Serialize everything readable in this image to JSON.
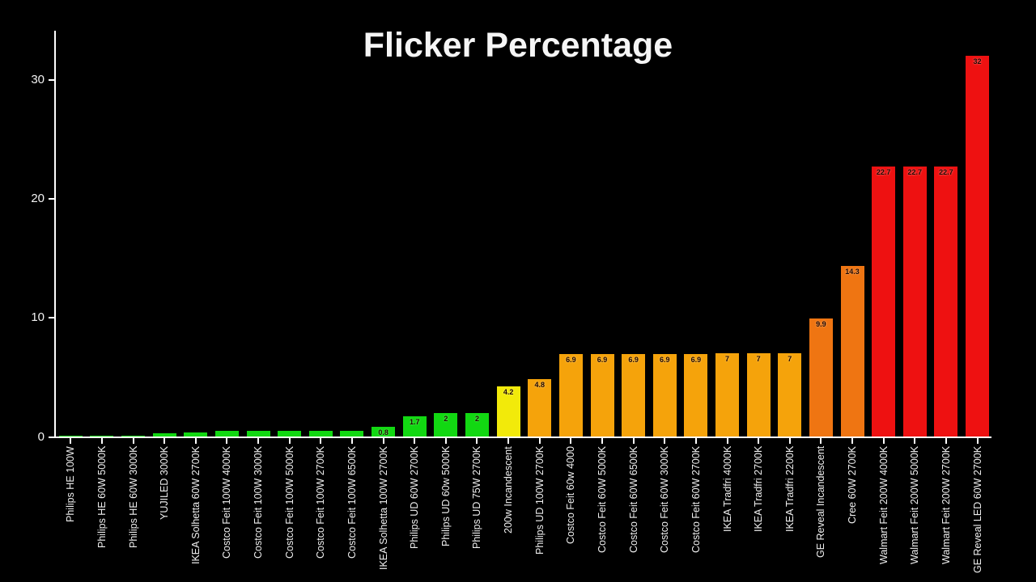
{
  "title": "Flicker Percentage",
  "colors": {
    "background": "#000000",
    "axis": "#ffffff",
    "tick_text": "#f2f2f2",
    "value_text": "#200800"
  },
  "chart_data": {
    "type": "bar",
    "title": "Flicker Percentage",
    "xlabel": "",
    "ylabel": "",
    "ylim": [
      0,
      34
    ],
    "yticks": [
      0,
      10,
      20,
      30
    ],
    "grid": false,
    "legend": "none",
    "palette": {
      "green": "#12d812",
      "yellow": "#f2ea0a",
      "orange": "#f5a30b",
      "dark_orange": "#ef7512",
      "red": "#ee1111"
    },
    "bars": [
      {
        "label": "Philips HE 100W",
        "value": 0.1,
        "display": "",
        "color": "green"
      },
      {
        "label": "Philips HE 60W 5000K",
        "value": 0.1,
        "display": "",
        "color": "green"
      },
      {
        "label": "Philips HE 60W 3000K",
        "value": 0.1,
        "display": "",
        "color": "green"
      },
      {
        "label": "YUJILED 3000K",
        "value": 0.25,
        "display": "",
        "color": "green"
      },
      {
        "label": "IKEA Solhetta 60W 2700K",
        "value": 0.35,
        "display": "",
        "color": "green"
      },
      {
        "label": "Costco Feit 100W 4000K",
        "value": 0.45,
        "display": "",
        "color": "green"
      },
      {
        "label": "Costco Feit 100W 3000K",
        "value": 0.45,
        "display": "",
        "color": "green"
      },
      {
        "label": "Costco Feit 100W 5000K",
        "value": 0.45,
        "display": "",
        "color": "green"
      },
      {
        "label": "Costco Feit 100W 2700K",
        "value": 0.45,
        "display": "",
        "color": "green"
      },
      {
        "label": "Costco Feit 100W 6500K",
        "value": 0.5,
        "display": "",
        "color": "green"
      },
      {
        "label": "IKEA Solhetta 100W 2700K",
        "value": 0.8,
        "display": "0.8",
        "color": "green"
      },
      {
        "label": "Philips UD 60W 2700K",
        "value": 1.7,
        "display": "1.7",
        "color": "green"
      },
      {
        "label": "Philips UD 60w 5000K",
        "value": 2,
        "display": "2",
        "color": "green"
      },
      {
        "label": "Philips UD 75W 2700K",
        "value": 2,
        "display": "2",
        "color": "green"
      },
      {
        "label": "200w Incandescent",
        "value": 4.2,
        "display": "4.2",
        "color": "yellow"
      },
      {
        "label": "Philips UD 100W 2700K",
        "value": 4.8,
        "display": "4.8",
        "color": "orange"
      },
      {
        "label": "Costco Feit 60w 4000",
        "value": 6.9,
        "display": "6.9",
        "color": "orange"
      },
      {
        "label": "Costco Feit 60W 5000K",
        "value": 6.9,
        "display": "6.9",
        "color": "orange"
      },
      {
        "label": "Costco Feit 60W 6500K",
        "value": 6.9,
        "display": "6.9",
        "color": "orange"
      },
      {
        "label": "Costco Feit 60W 3000K",
        "value": 6.9,
        "display": "6.9",
        "color": "orange"
      },
      {
        "label": "Costco Feit 60W 2700K",
        "value": 6.9,
        "display": "6.9",
        "color": "orange"
      },
      {
        "label": "IKEA Tradfri 4000K",
        "value": 7,
        "display": "7",
        "color": "orange"
      },
      {
        "label": "IKEA Tradfri 2700K",
        "value": 7,
        "display": "7",
        "color": "orange"
      },
      {
        "label": "IKEA Tradfri 2200K",
        "value": 7,
        "display": "7",
        "color": "orange"
      },
      {
        "label": "GE Reveal Incandescent",
        "value": 9.9,
        "display": "9.9",
        "color": "dark_orange"
      },
      {
        "label": "Cree 60W 2700K",
        "value": 14.3,
        "display": "14.3",
        "color": "dark_orange"
      },
      {
        "label": "Walmart Feit 200W 4000K",
        "value": 22.7,
        "display": "22.7",
        "color": "red"
      },
      {
        "label": "Walmart Feit 200W 5000K",
        "value": 22.7,
        "display": "22.7",
        "color": "red"
      },
      {
        "label": "Walmart Feit 200W 2700K",
        "value": 22.7,
        "display": "22.7",
        "color": "red"
      },
      {
        "label": "GE Reveal LED 60W 2700K",
        "value": 32,
        "display": "32",
        "color": "red"
      }
    ]
  }
}
